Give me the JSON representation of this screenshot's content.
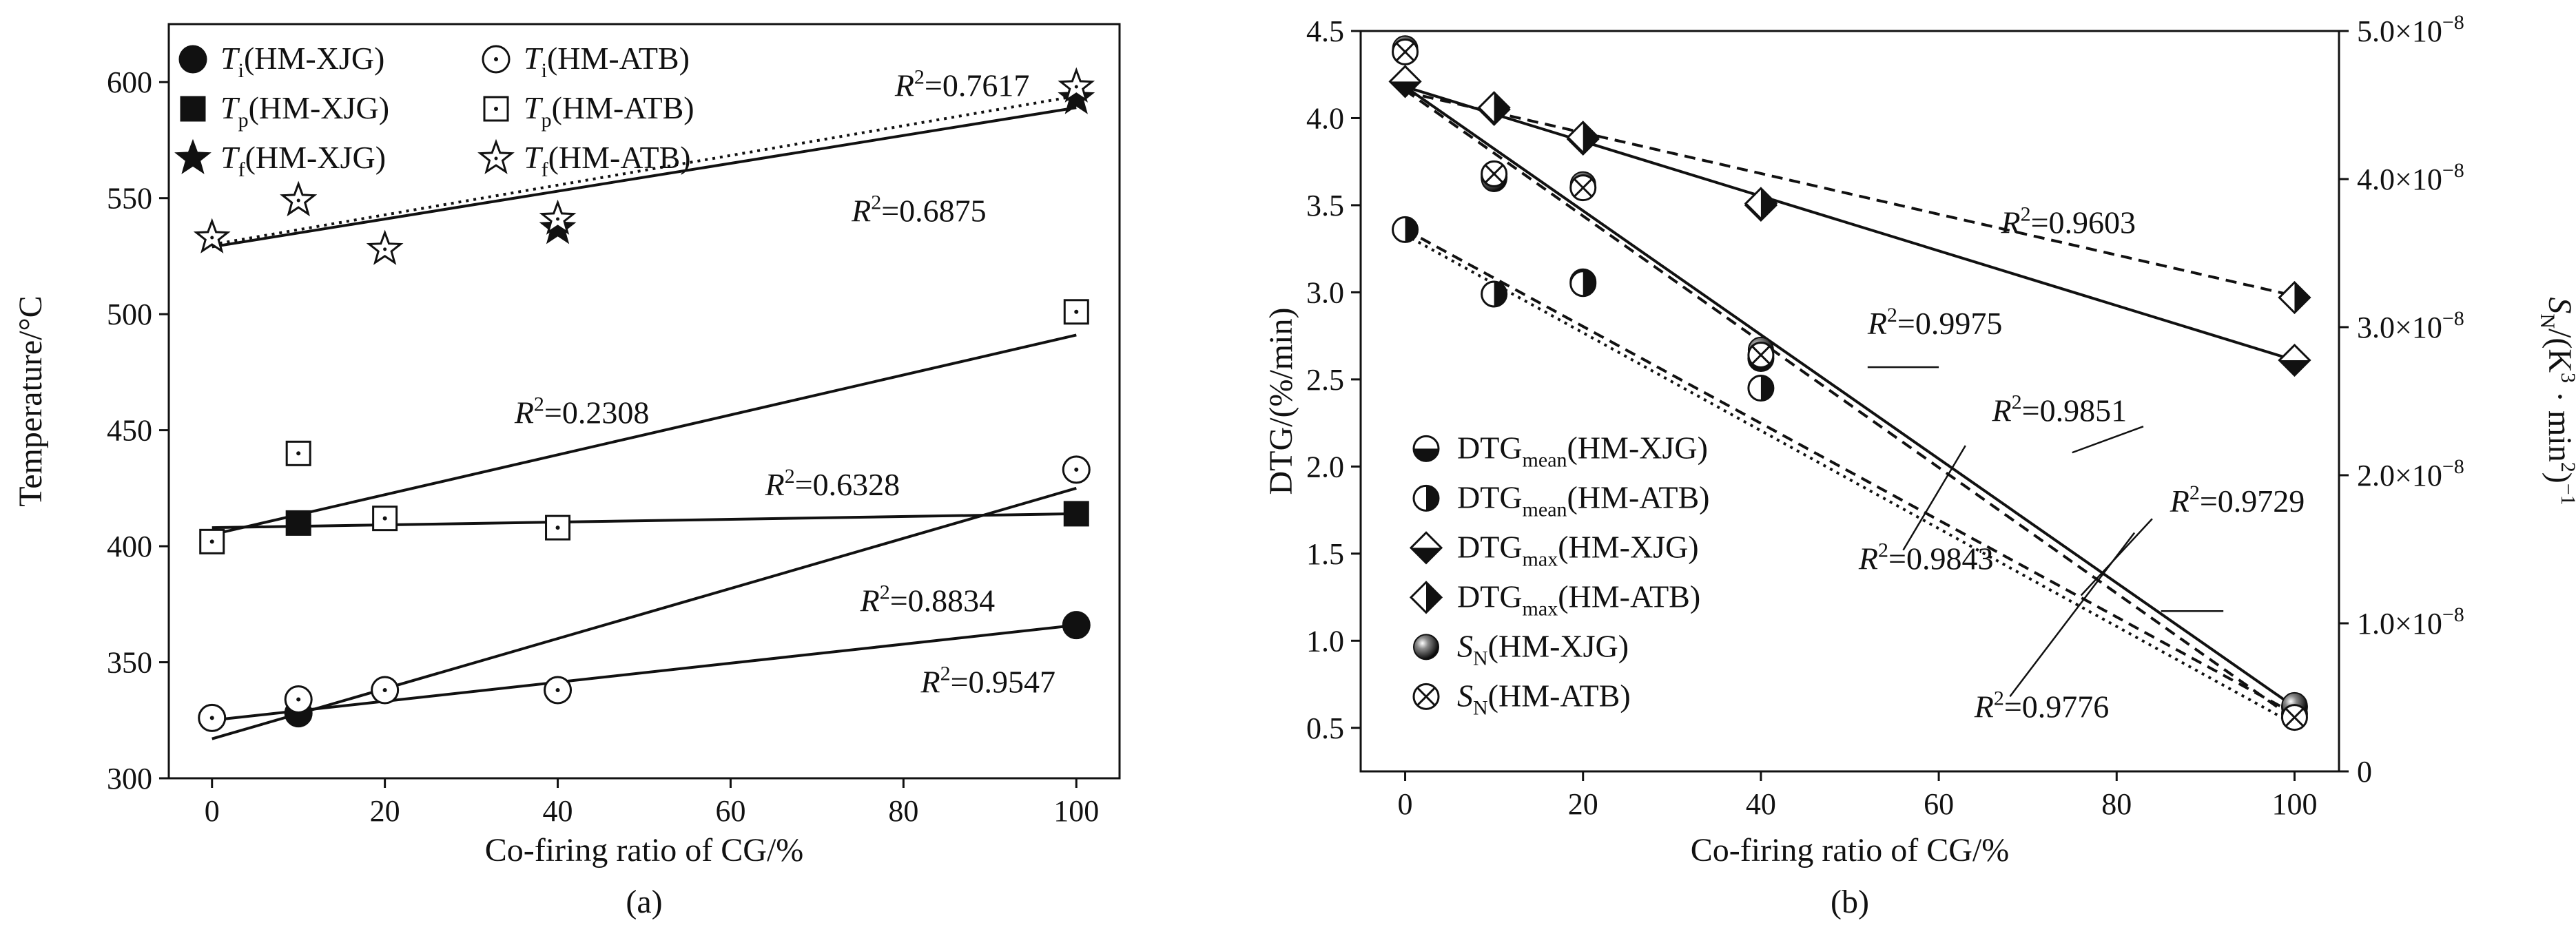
{
  "chart_data": [
    {
      "type": "scatter",
      "panel": "(a)",
      "caption": "(a)",
      "xlabel": "Co-firing ratio of CG/%",
      "ylabel": "Temperature/°C",
      "xlim": [
        -5,
        105
      ],
      "ylim": [
        300,
        625
      ],
      "xticks": [
        "0",
        "20",
        "40",
        "60",
        "80",
        "100"
      ],
      "yticks": [
        "300",
        "350",
        "400",
        "450",
        "500",
        "550",
        "600"
      ],
      "series": [
        {
          "name": "Ti(HM-XJG)",
          "legend_main": "T",
          "legend_sub": "i",
          "legend_rest": "(HM-XJG)",
          "marker": "circle-filled",
          "x": [
            10,
            100
          ],
          "y": [
            328,
            366
          ],
          "fit": [
            [
              0,
              325
            ],
            [
              100,
              366
            ]
          ],
          "fit_style": "solid"
        },
        {
          "name": "Ti(HM-ATB)",
          "legend_main": "T",
          "legend_sub": "i",
          "legend_rest": "(HM-ATB)",
          "marker": "circle-dot",
          "x": [
            0,
            10,
            20,
            40,
            100
          ],
          "y": [
            326,
            334,
            338,
            338,
            433
          ],
          "fit": [
            [
              0,
              317
            ],
            [
              100,
              425
            ]
          ],
          "fit_style": "solid"
        },
        {
          "name": "Tp(HM-XJG)",
          "legend_main": "T",
          "legend_sub": "p",
          "legend_rest": "(HM-XJG)",
          "marker": "square-filled",
          "x": [
            10,
            100
          ],
          "y": [
            410,
            414
          ],
          "fit": [
            [
              0,
              408
            ],
            [
              100,
              414
            ]
          ],
          "fit_style": "solid"
        },
        {
          "name": "Tp(HM-ATB)",
          "legend_main": "T",
          "legend_sub": "p",
          "legend_rest": "(HM-ATB)",
          "marker": "square-dot",
          "x": [
            0,
            10,
            20,
            40,
            100
          ],
          "y": [
            402,
            440,
            412,
            408,
            501
          ],
          "fit": [
            [
              0,
              405
            ],
            [
              100,
              491
            ]
          ],
          "fit_style": "solid"
        },
        {
          "name": "Tf(HM-XJG)",
          "legend_main": "T",
          "legend_sub": "f",
          "legend_rest": "(HM-XJG)",
          "marker": "star-filled",
          "x": [
            10,
            40,
            100
          ],
          "y": [
            549,
            537,
            593
          ],
          "fit": [
            [
              0,
              529
            ],
            [
              100,
              589
            ]
          ],
          "fit_style": "solid"
        },
        {
          "name": "Tf(HM-ATB)",
          "legend_main": "T",
          "legend_sub": "f",
          "legend_rest": "(HM-ATB)",
          "marker": "star-open",
          "x": [
            0,
            10,
            20,
            40,
            100
          ],
          "y": [
            533,
            549,
            528,
            541,
            598
          ],
          "fit": [
            [
              0,
              530
            ],
            [
              100,
              594
            ]
          ],
          "fit_style": "dotted"
        }
      ],
      "annotations": [
        {
          "text": "=0.7617",
          "base": "R",
          "sup": "2",
          "x": 79,
          "y": 594
        },
        {
          "text": "=0.6875",
          "base": "R",
          "sup": "2",
          "x": 74,
          "y": 540
        },
        {
          "text": "=0.2308",
          "base": "R",
          "sup": "2",
          "x": 35,
          "y": 453
        },
        {
          "text": "=0.6328",
          "base": "R",
          "sup": "2",
          "x": 64,
          "y": 422
        },
        {
          "text": "=0.8834",
          "base": "R",
          "sup": "2",
          "x": 75,
          "y": 372
        },
        {
          "text": "=0.9547",
          "base": "R",
          "sup": "2",
          "x": 82,
          "y": 337
        }
      ]
    },
    {
      "type": "scatter",
      "panel": "(b)",
      "caption": "(b)",
      "xlabel": "Co-firing ratio of CG/%",
      "ylabel": "DTG/(%/min)",
      "ylabel2_main": "S",
      "ylabel2_sub": "N",
      "ylabel2_rest": "/(K",
      "ylabel2_sup": "3",
      "ylabel2_mid": " · min",
      "ylabel2_sup2": "2",
      "ylabel2_close": ")",
      "ylabel2_sup3": "−1",
      "xlim": [
        -5,
        105
      ],
      "ylim": [
        0.25,
        4.5
      ],
      "y2lim": [
        0,
        5e-08
      ],
      "xticks": [
        "0",
        "20",
        "40",
        "60",
        "80",
        "100"
      ],
      "yticks": [
        "0.5",
        "1.0",
        "1.5",
        "2.0",
        "2.5",
        "3.0",
        "3.5",
        "4.0",
        "4.5"
      ],
      "y2ticks": [
        "0",
        "1.0×10",
        "2.0×10",
        "3.0×10",
        "4.0×10",
        "5.0×10"
      ],
      "y2tick_exp": "−8",
      "series": [
        {
          "name": "DTGmean(HM-XJG)",
          "legend_main": "DTG",
          "legend_sub": "mean",
          "legend_rest": "(HM-XJG)",
          "marker": "circle-half-bottom",
          "x": [
            10,
            20,
            40,
            100
          ],
          "y": [
            3.66,
            3.06,
            2.62,
            0.62
          ],
          "fit": [
            [
              0,
              3.36
            ],
            [
              100,
              0.58
            ]
          ],
          "fit_style": "dashed"
        },
        {
          "name": "DTGmean(HM-ATB)",
          "legend_main": "DTG",
          "legend_sub": "mean",
          "legend_rest": "(HM-ATB)",
          "marker": "circle-half-right",
          "x": [
            0,
            10,
            20,
            40,
            100
          ],
          "y": [
            3.36,
            2.99,
            3.05,
            2.45,
            0.58
          ],
          "fit": [
            [
              0,
              3.33
            ],
            [
              100,
              0.52
            ]
          ],
          "fit_style": "dotted"
        },
        {
          "name": "DTGmax(HM-XJG)",
          "legend_main": "DTG",
          "legend_sub": "max",
          "legend_rest": "(HM-XJG)",
          "marker": "diamond-half-bottom",
          "x": [
            0,
            10,
            20,
            40,
            100
          ],
          "y": [
            4.21,
            4.05,
            3.88,
            3.5,
            2.61
          ],
          "fit": [
            [
              0,
              4.18
            ],
            [
              100,
              2.61
            ]
          ],
          "fit_style": "solid"
        },
        {
          "name": "DTGmax(HM-ATB)",
          "legend_main": "DTG",
          "legend_sub": "max",
          "legend_rest": "(HM-ATB)",
          "marker": "diamond-half-right",
          "x": [
            10,
            20,
            40,
            100
          ],
          "y": [
            4.06,
            3.89,
            3.51,
            2.97
          ],
          "fit": [
            [
              0,
              4.15
            ],
            [
              100,
              2.98
            ]
          ],
          "fit_style": "dashed"
        },
        {
          "name": "SN(HM-XJG)",
          "legend_main": "S",
          "legend_sub": "N",
          "legend_rest": "(HM-XJG)",
          "marker": "sphere",
          "x": [
            0,
            10,
            20,
            40,
            100
          ],
          "y": [
            4.4,
            3.65,
            3.62,
            2.67,
            0.63
          ],
          "fit": [
            [
              0,
              4.18
            ],
            [
              100,
              0.62
            ]
          ],
          "fit_style": "solid"
        },
        {
          "name": "SN(HM-ATB)",
          "legend_main": "S",
          "legend_sub": "N",
          "legend_rest": "(HM-ATB)",
          "marker": "circle-x",
          "x": [
            0,
            10,
            20,
            40,
            100
          ],
          "y": [
            4.38,
            3.68,
            3.6,
            2.64,
            0.56
          ],
          "fit": [
            [
              0,
              4.16
            ],
            [
              100,
              0.55
            ]
          ],
          "fit_style": "dashed"
        }
      ],
      "annotations": [
        {
          "text": "=0.9603",
          "base": "R",
          "sup": "2",
          "x": 67,
          "y": 3.34
        },
        {
          "text": "=0.9975",
          "base": "R",
          "sup": "2",
          "x": 52,
          "y": 2.76
        },
        {
          "text": "=0.9851",
          "base": "R",
          "sup": "2",
          "x": 66,
          "y": 2.26
        },
        {
          "text": "=0.9729",
          "base": "R",
          "sup": "2",
          "x": 86,
          "y": 1.74
        },
        {
          "text": "=0.9843",
          "base": "R",
          "sup": "2",
          "x": 51,
          "y": 1.41
        },
        {
          "text": "=0.9776",
          "base": "R",
          "sup": "2",
          "x": 64,
          "y": 0.56
        }
      ]
    }
  ]
}
